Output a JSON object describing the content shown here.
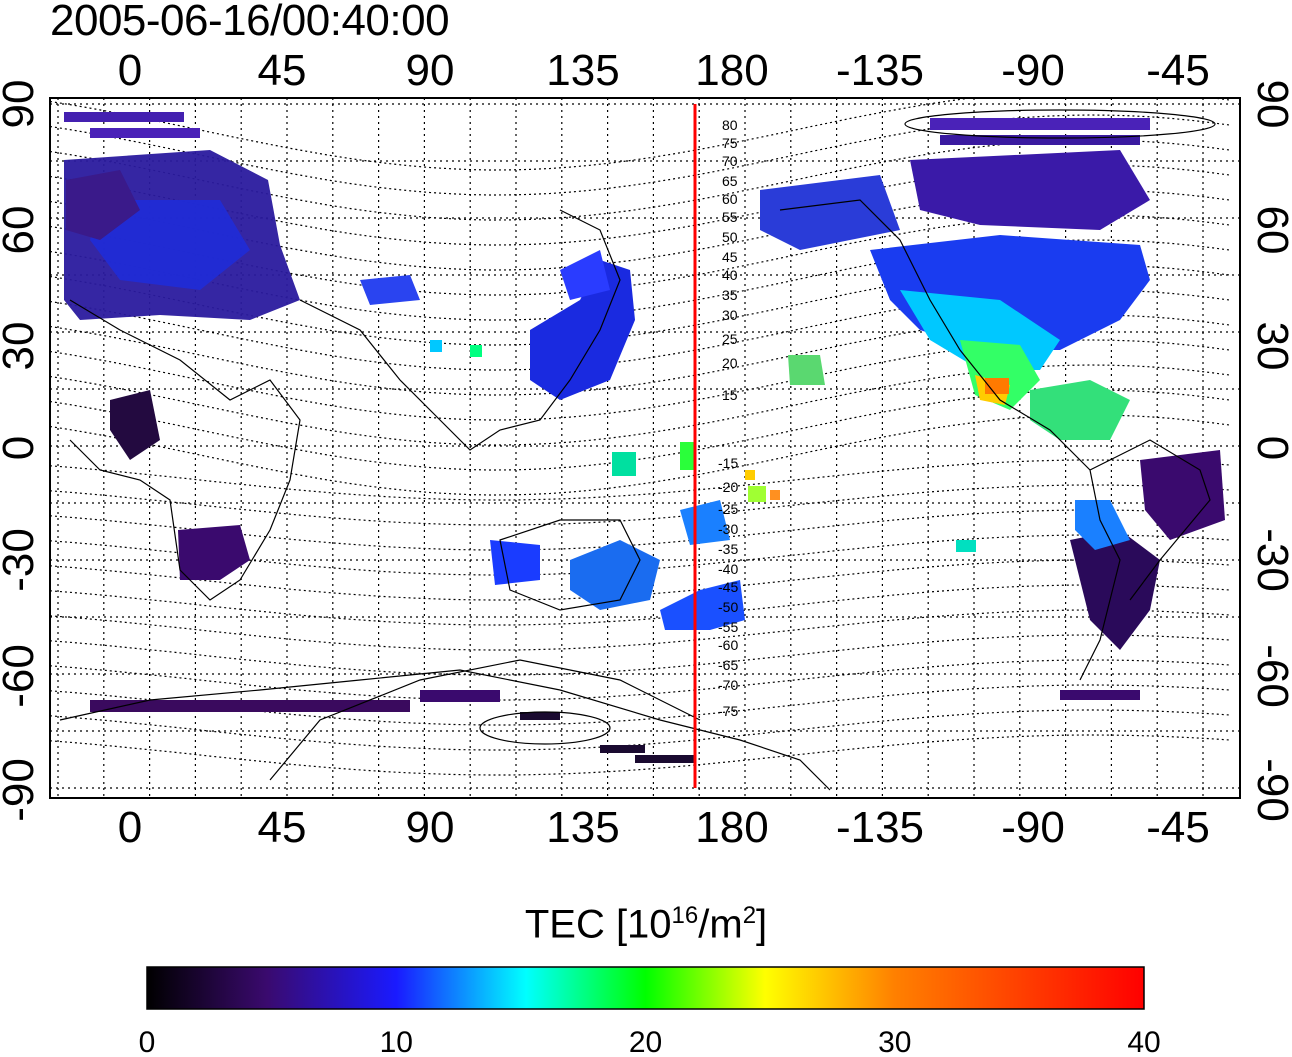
{
  "title": "2005-06-16/00:40:00",
  "map": {
    "lon_ticks": [
      "0",
      "45",
      "90",
      "135",
      "180",
      "-135",
      "-90",
      "-45"
    ],
    "lat_ticks": [
      "90",
      "60",
      "30",
      "0",
      "-30",
      "-60",
      "-90"
    ],
    "meridian_marker_color": "#ff0000",
    "contour_labels_north": [
      "80",
      "75",
      "70",
      "65",
      "60",
      "55",
      "50",
      "45",
      "40",
      "35",
      "30",
      "25",
      "20",
      "15"
    ],
    "contour_labels_south": [
      "-15",
      "-20",
      "-25",
      "-30",
      "-35",
      "-40",
      "-45",
      "-50",
      "-55",
      "-60",
      "-65",
      "-70",
      "-75"
    ]
  },
  "colorbar": {
    "label_main": "TEC  [10",
    "label_exp1": "16",
    "label_mid": "/m",
    "label_exp2": "2",
    "label_end": "]",
    "tick_labels": [
      "0",
      "10",
      "20",
      "30",
      "40"
    ],
    "range": [
      0,
      40
    ],
    "colors": [
      "#000000",
      "#3a0a6e",
      "#1a1aff",
      "#00ffff",
      "#00ff00",
      "#ffff00",
      "#ff8000",
      "#ff0000"
    ]
  }
}
